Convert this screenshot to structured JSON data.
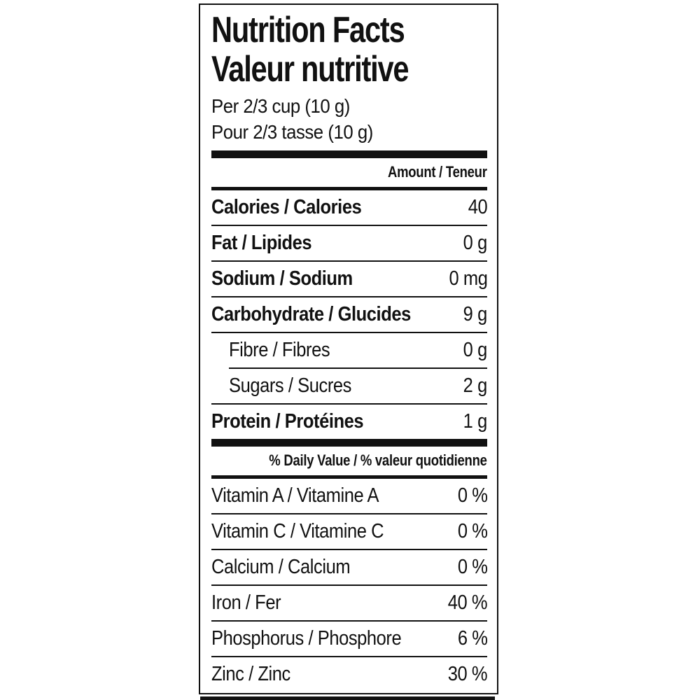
{
  "label": {
    "title_en": "Nutrition Facts",
    "title_fr": "Valeur nutritive",
    "serving_en": "Per 2/3 cup (10 g)",
    "serving_fr": "Pour 2/3 tasse (10 g)",
    "amount_header": "Amount / Teneur",
    "daily_value_header": "% Daily Value / % valeur quotidienne",
    "colors": {
      "text": "#111111",
      "background": "#ffffff"
    },
    "nutrients": [
      {
        "label": "Calories / Calories",
        "value": "40"
      },
      {
        "label": "Fat / Lipides",
        "value": "0 g"
      },
      {
        "label": "Sodium / Sodium",
        "value": "0 mg"
      },
      {
        "label": "Carbohydrate / Glucides",
        "value": "9 g"
      },
      {
        "label": "Fibre / Fibres",
        "value": "0 g"
      },
      {
        "label": "Sugars / Sucres",
        "value": "2 g"
      },
      {
        "label": "Protein / Protéines",
        "value": "1 g"
      }
    ],
    "daily_values": [
      {
        "label": "Vitamin A / Vitamine A",
        "value": "0 %"
      },
      {
        "label": "Vitamin C / Vitamine C",
        "value": "0 %"
      },
      {
        "label": "Calcium / Calcium",
        "value": "0 %"
      },
      {
        "label": "Iron / Fer",
        "value": "40 %"
      },
      {
        "label": "Phosphorus / Phosphore",
        "value": "6 %"
      },
      {
        "label": "Zinc / Zinc",
        "value": "30 %"
      }
    ]
  }
}
